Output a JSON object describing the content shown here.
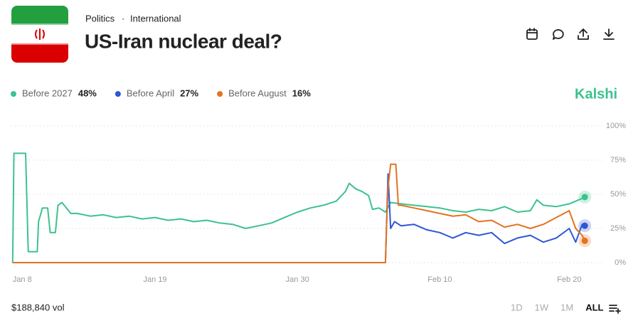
{
  "header": {
    "breadcrumb": [
      "Politics",
      "International"
    ],
    "separator": "·",
    "title": "US-Iran nuclear deal?"
  },
  "brand": "Kalshi",
  "volume": "$188,840 vol",
  "ranges": [
    "1D",
    "1W",
    "1M",
    "ALL"
  ],
  "active_range": "ALL",
  "chart_data": {
    "type": "line",
    "series": [
      {
        "name": "Before 2027",
        "color": "#3cc28d",
        "current": "48%",
        "x": [
          8,
          8.1,
          9.0,
          9.2,
          9.9,
          10.0,
          10.3,
          10.7,
          10.9,
          11.3,
          11.5,
          11.8,
          12.5,
          13,
          14,
          15,
          16,
          17,
          18,
          19,
          20,
          21,
          22,
          23,
          24,
          25,
          26,
          27,
          28,
          29,
          30,
          31,
          32,
          33,
          33.7,
          34,
          34.5,
          35,
          35.5,
          35.8,
          36.3,
          36.8,
          37.2,
          38,
          39,
          40,
          41,
          42,
          43,
          44,
          45,
          46,
          47,
          48,
          48.5,
          49,
          50,
          51,
          52,
          52.2
        ],
        "values": [
          0,
          80,
          80,
          8,
          8,
          30,
          40,
          40,
          22,
          22,
          42,
          44,
          36,
          36,
          34,
          35,
          33,
          34,
          32,
          33,
          31,
          32,
          30,
          31,
          29,
          28,
          25,
          27,
          29,
          33,
          37,
          40,
          42,
          45,
          52,
          58,
          54,
          52,
          49,
          39,
          40,
          37,
          44,
          43,
          42,
          41,
          40,
          38,
          37,
          39,
          38,
          41,
          37,
          38,
          46,
          42,
          41,
          43,
          47,
          48
        ]
      },
      {
        "name": "Before April",
        "color": "#2f57d4",
        "current": "27%",
        "x": [
          8,
          36.8,
          37.0,
          37.2,
          37.5,
          38,
          39,
          40,
          41,
          42,
          43,
          44,
          45,
          46,
          47,
          48,
          49,
          50,
          51,
          51.5,
          52,
          52.2
        ],
        "values": [
          0,
          0,
          65,
          25,
          30,
          27,
          28,
          24,
          22,
          18,
          22,
          20,
          22,
          14,
          18,
          20,
          15,
          18,
          25,
          15,
          28,
          27
        ]
      },
      {
        "name": "Before August",
        "color": "#e3731f",
        "current": "16%",
        "x": [
          8,
          36.8,
          36.9,
          37.0,
          37.2,
          37.6,
          37.8,
          38,
          39,
          40,
          41,
          42,
          43,
          44,
          45,
          46,
          47,
          48,
          49,
          50,
          51,
          51.5,
          52,
          52.2
        ],
        "values": [
          0,
          0,
          30,
          55,
          72,
          72,
          42,
          42,
          40,
          38,
          36,
          34,
          35,
          30,
          31,
          26,
          28,
          25,
          28,
          33,
          38,
          25,
          20,
          16
        ]
      }
    ],
    "xlim": [
      7.9,
      52.3
    ],
    "xticks": [
      {
        "value": 8,
        "label": "Jan 8"
      },
      {
        "value": 19,
        "label": "Jan 19"
      },
      {
        "value": 30,
        "label": "Jan 30"
      },
      {
        "value": 41,
        "label": "Feb 10"
      },
      {
        "value": 51,
        "label": "Feb 20"
      }
    ],
    "ylim": [
      0,
      100
    ],
    "yticks": [
      {
        "value": 0,
        "label": "0%"
      },
      {
        "value": 25,
        "label": "25%"
      },
      {
        "value": 50,
        "label": "50%"
      },
      {
        "value": 75,
        "label": "75%"
      },
      {
        "value": 100,
        "label": "100%"
      }
    ],
    "grid": true
  }
}
